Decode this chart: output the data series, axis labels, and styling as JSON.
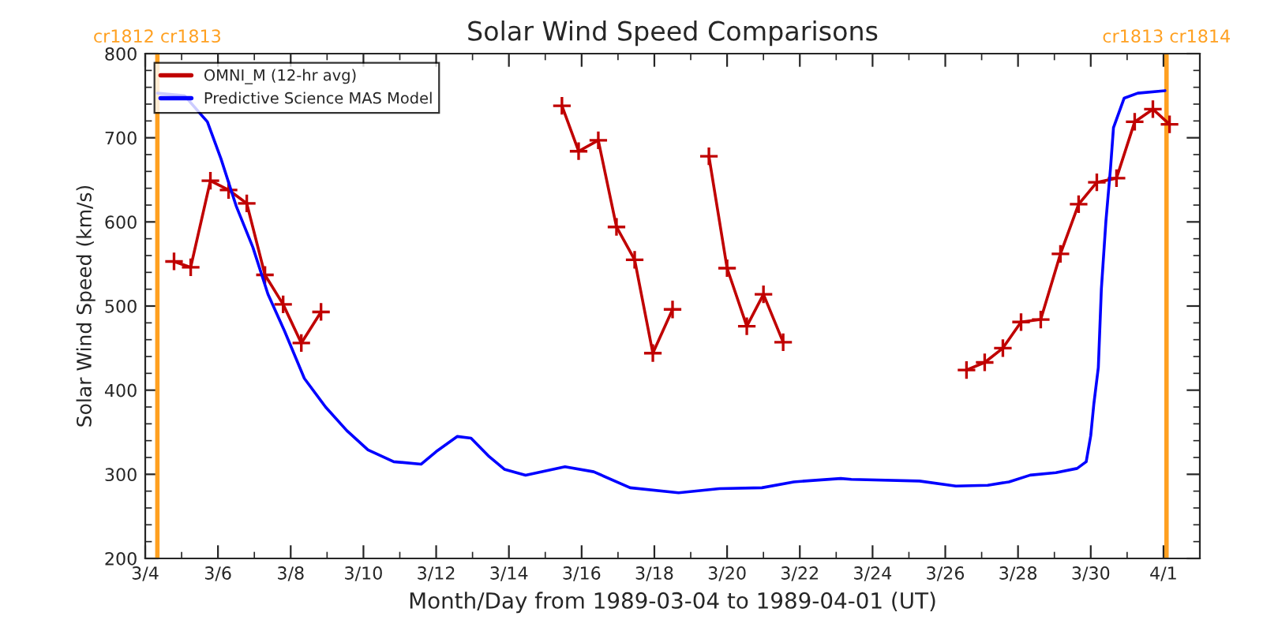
{
  "chart_data": {
    "type": "line",
    "title": "Solar Wind Speed Comparisons",
    "xlabel": "Month/Day from 1989-03-04 to 1989-04-01 (UT)",
    "ylabel": "Solar Wind Speed (km/s)",
    "xlim": [
      "1989-03-04",
      "1989-04-02"
    ],
    "ylim": [
      200,
      800
    ],
    "yticks": [
      200,
      300,
      400,
      500,
      600,
      700,
      800
    ],
    "xticks": [
      {
        "value": "1989-03-04",
        "label": "3/4"
      },
      {
        "value": "1989-03-06",
        "label": "3/6"
      },
      {
        "value": "1989-03-08",
        "label": "3/8"
      },
      {
        "value": "1989-03-10",
        "label": "3/10"
      },
      {
        "value": "1989-03-12",
        "label": "3/12"
      },
      {
        "value": "1989-03-14",
        "label": "3/14"
      },
      {
        "value": "1989-03-16",
        "label": "3/16"
      },
      {
        "value": "1989-03-18",
        "label": "3/18"
      },
      {
        "value": "1989-03-20",
        "label": "3/20"
      },
      {
        "value": "1989-03-22",
        "label": "3/22"
      },
      {
        "value": "1989-03-24",
        "label": "3/24"
      },
      {
        "value": "1989-03-26",
        "label": "3/26"
      },
      {
        "value": "1989-03-28",
        "label": "3/28"
      },
      {
        "value": "1989-03-30",
        "label": "3/30"
      },
      {
        "value": "1989-04-01",
        "label": "4/1"
      }
    ],
    "grid": false,
    "legend": "top left",
    "series": [
      {
        "name": "OMNI_M (12-hr avg)",
        "color": "#c00000",
        "marker": "cross",
        "x": [
          "1989-03-04T19:00",
          "1989-03-05T06:00",
          "1989-03-05T19:00",
          "1989-03-06T07:00",
          "1989-03-06T19:00",
          "1989-03-07T07:00",
          "1989-03-07T19:00",
          "1989-03-08T07:00",
          "1989-03-08T20:00",
          "1989-03-12T00:00",
          "1989-03-15T11:00",
          "1989-03-15T22:00",
          "1989-03-16T11:00",
          "1989-03-16T23:00",
          "1989-03-17T11:00",
          "1989-03-17T23:00",
          "1989-03-18T12:00",
          "1989-03-19T00:00",
          "1989-03-19T12:00",
          "1989-03-20T00:00",
          "1989-03-20T13:00",
          "1989-03-21T00:00",
          "1989-03-21T13:00",
          "1989-03-24T00:00",
          "1989-03-26T14:00",
          "1989-03-27T02:00",
          "1989-03-27T14:00",
          "1989-03-28T02:00",
          "1989-03-28T15:00",
          "1989-03-29T04:00",
          "1989-03-29T16:00",
          "1989-03-30T04:00",
          "1989-03-30T17:00",
          "1989-03-31T05:00",
          "1989-03-31T17:00",
          "1989-04-01T04:00"
        ],
        "values": [
          553,
          546,
          649,
          638,
          622,
          537,
          502,
          456,
          493,
          null,
          738,
          684,
          697,
          594,
          555,
          444,
          496,
          null,
          678,
          545,
          476,
          514,
          457,
          null,
          424,
          433,
          450,
          481,
          484,
          562,
          621,
          647,
          652,
          719,
          734,
          716
        ]
      },
      {
        "name": "Predictive Science MAS Model",
        "color": "#0000ff",
        "marker": "none",
        "x": [
          "1989-03-04T08:00",
          "1989-03-05T02:00",
          "1989-03-05T17:00",
          "1989-03-06T02:00",
          "1989-03-06T12:00",
          "1989-03-06T23:00",
          "1989-03-07T09:00",
          "1989-03-07T20:00",
          "1989-03-08T09:00",
          "1989-03-08T23:00",
          "1989-03-09T13:00",
          "1989-03-10T03:00",
          "1989-03-10T20:00",
          "1989-03-11T14:00",
          "1989-03-12T00:00",
          "1989-03-12T14:00",
          "1989-03-12T23:00",
          "1989-03-13T11:00",
          "1989-03-13T21:00",
          "1989-03-14T11:00",
          "1989-03-15T13:00",
          "1989-03-16T08:00",
          "1989-03-17T08:00",
          "1989-03-18T16:00",
          "1989-03-19T19:00",
          "1989-03-20T23:00",
          "1989-03-21T20:00",
          "1989-03-23T03:00",
          "1989-03-23T10:00",
          "1989-03-25T07:00",
          "1989-03-26T07:00",
          "1989-03-27T04:00",
          "1989-03-27T18:00",
          "1989-03-28T08:00",
          "1989-03-29T01:00",
          "1989-03-29T15:00",
          "1989-03-29T21:00",
          "1989-03-30T00:00",
          "1989-03-30T02:00",
          "1989-03-30T05:00",
          "1989-03-30T07:00",
          "1989-03-30T10:00",
          "1989-03-30T13:00",
          "1989-03-30T15:00",
          "1989-03-30T22:00",
          "1989-03-31T07:00",
          "1989-04-01T01:00"
        ],
        "values": [
          753,
          750,
          719,
          675,
          619,
          570,
          514,
          470,
          414,
          380,
          352,
          329,
          315,
          312,
          327,
          345,
          343,
          321,
          306,
          299,
          309,
          303,
          284,
          278,
          283,
          284,
          291,
          295,
          294,
          292,
          286,
          287,
          291,
          299,
          302,
          307,
          315,
          346,
          383,
          427,
          520,
          601,
          663,
          712,
          747,
          753,
          756
        ]
      }
    ],
    "ref_lines": [
      {
        "axis": "x",
        "value": "1989-03-04T08:00",
        "label": "cr1812 cr1813",
        "color": "#ffa020"
      },
      {
        "axis": "x",
        "value": "1989-04-01T02:00",
        "label": "cr1813 cr1814",
        "color": "#ffa020"
      }
    ]
  }
}
